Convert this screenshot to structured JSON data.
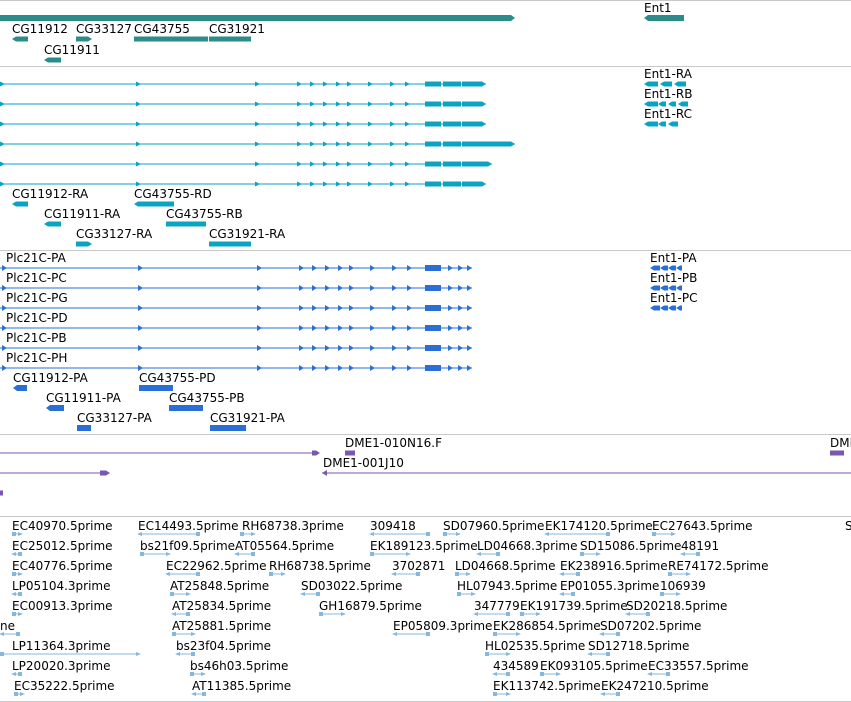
{
  "colors": {
    "gene": "#2c8c8a",
    "mrna": "#0aa3c2",
    "protein": "#2a6fd6",
    "est_clone": "#7a57b0",
    "est": "#86b7dc",
    "divider": "#c9c9c9"
  },
  "tracks": {
    "gene": {
      "labels": [
        "Ent1",
        "CG11912",
        "CG33127",
        "CG43755",
        "CG31921",
        "CG11911"
      ]
    },
    "mrna": {
      "labels": [
        "Ent1-RA",
        "Ent1-RB",
        "Ent1-RC",
        "CG11912-RA",
        "CG43755-RD",
        "CG11911-RA",
        "CG43755-RB",
        "CG33127-RA",
        "CG31921-RA"
      ]
    },
    "protein": {
      "labels": [
        "Plc21C-PA",
        "Plc21C-PC",
        "Plc21C-PG",
        "Plc21C-PD",
        "Plc21C-PB",
        "Plc21C-PH",
        "Ent1-PA",
        "Ent1-PB",
        "Ent1-PC",
        "CG11912-PA",
        "CG43755-PD",
        "CG11911-PA",
        "CG43755-PB",
        "CG33127-PA",
        "CG31921-PA"
      ]
    },
    "clone": {
      "labels": [
        "DME1-010N16.F",
        "DME1-001J10",
        "DMI"
      ]
    },
    "est": {
      "labels": [
        "EC40970.5prime",
        "EC14493.5prime",
        "RH68738.3prime",
        "309418",
        "SD07960.5prime",
        "EK174120.5prime",
        "EC27643.5prime",
        "S",
        "EC25012.5prime",
        "bs21f09.5prime",
        "AT05564.5prime",
        "EK189123.5prime",
        "LD04668.3prime",
        "SD15086.5prime",
        "48191",
        "EC40776.5prime",
        "EC22962.5prime",
        "RH68738.5prime",
        "3702871",
        "LD04668.5prime",
        "EK238916.5prime",
        "RE74172.5prime",
        "LP05104.3prime",
        "AT25848.5prime",
        "SD03022.5prime",
        "HL07943.5prime",
        "EP01055.3prime",
        "106939",
        "EC00913.3prime",
        "AT25834.5prime",
        "GH16879.5prime",
        "347779",
        "EK191739.5prime",
        "SD20218.5prime",
        "ne",
        "AT25881.5prime",
        "EP05809.3prime",
        "EK286854.5prime",
        "SD07202.5prime",
        "LP11364.3prime",
        "bs23f04.5prime",
        "HL02535.5prime",
        "SD12718.5prime",
        "LP20020.3prime",
        "bs46h03.5prime",
        "434589",
        "EK093105.5prime",
        "EC33557.5prime",
        "EC35222.5prime",
        "AT11385.5prime",
        "EK113742.5prime",
        "EK247210.5prime"
      ]
    }
  }
}
